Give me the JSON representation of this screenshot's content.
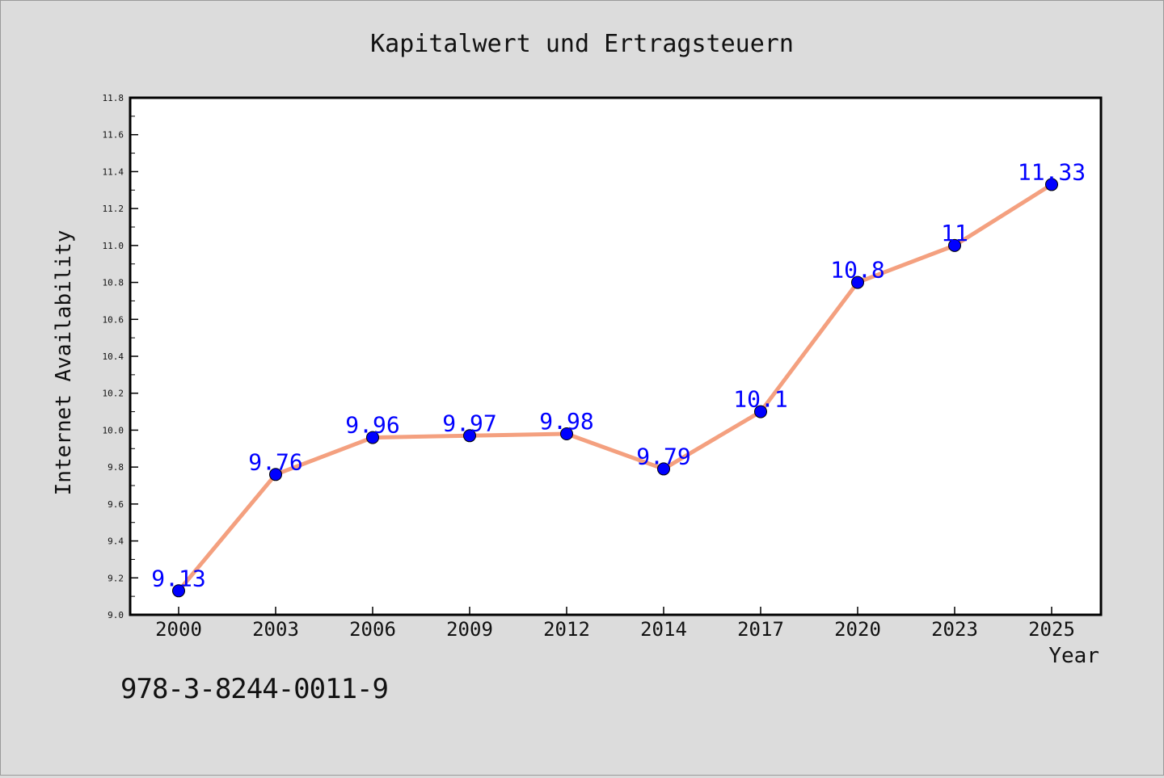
{
  "chart_data": {
    "type": "line",
    "title": "Kapitalwert und Ertragsteuern",
    "xlabel": "Year",
    "ylabel": "Internet Availability",
    "categories": [
      "2000",
      "2003",
      "2006",
      "2009",
      "2012",
      "2014",
      "2017",
      "2020",
      "2023",
      "2025"
    ],
    "series": [
      {
        "values": [
          9.13,
          9.76,
          9.96,
          9.97,
          9.98,
          9.79,
          10.1,
          10.8,
          11,
          11.33
        ],
        "labels": [
          "9.13",
          "9.76",
          "9.96",
          "9.97",
          "9.98",
          "9.79",
          "10.1",
          "10.8",
          "11",
          "11.33"
        ]
      }
    ],
    "ylim": [
      9.0,
      11.8
    ],
    "yticks": [
      "9.0",
      "9.2",
      "9.4",
      "9.6",
      "9.8",
      "10.0",
      "10.2",
      "10.4",
      "10.6",
      "10.8",
      "11.0",
      "11.2",
      "11.4",
      "11.6",
      "11.8"
    ],
    "grid": false,
    "colors": {
      "line": "#f4a07f",
      "marker": "#0000ff",
      "label": "#0000ff",
      "background": "#dcdcdc",
      "plot_background": "#ffffff"
    }
  },
  "footer": {
    "code": "978-3-8244-0011-9"
  }
}
